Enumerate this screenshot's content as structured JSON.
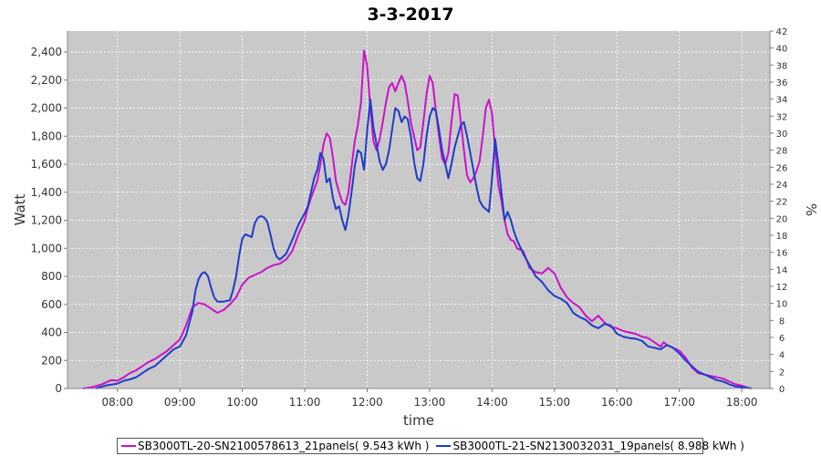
{
  "chart_data": {
    "type": "line",
    "title": "3-3-2017",
    "xlabel": "time",
    "ylabel": "Watt",
    "y2label": "%",
    "xlim": [
      7.2,
      18.45
    ],
    "ylim": [
      0,
      2550
    ],
    "y2lim": [
      0,
      42
    ],
    "grid": true,
    "x_ticks": [
      {
        "v": 8,
        "label": "08:00"
      },
      {
        "v": 9,
        "label": "09:00"
      },
      {
        "v": 10,
        "label": "10:00"
      },
      {
        "v": 11,
        "label": "11:00"
      },
      {
        "v": 12,
        "label": "12:00"
      },
      {
        "v": 13,
        "label": "13:00"
      },
      {
        "v": 14,
        "label": "14:00"
      },
      {
        "v": 15,
        "label": "15:00"
      },
      {
        "v": 16,
        "label": "16:00"
      },
      {
        "v": 17,
        "label": "17:00"
      },
      {
        "v": 18,
        "label": "18:00"
      }
    ],
    "y_ticks": [
      {
        "v": 0,
        "label": "0"
      },
      {
        "v": 200,
        "label": "200"
      },
      {
        "v": 400,
        "label": "400"
      },
      {
        "v": 600,
        "label": "600"
      },
      {
        "v": 800,
        "label": "800"
      },
      {
        "v": 1000,
        "label": "1,000"
      },
      {
        "v": 1200,
        "label": "1,200"
      },
      {
        "v": 1400,
        "label": "1,400"
      },
      {
        "v": 1600,
        "label": "1,600"
      },
      {
        "v": 1800,
        "label": "1,800"
      },
      {
        "v": 2000,
        "label": "2,000"
      },
      {
        "v": 2200,
        "label": "2,200"
      },
      {
        "v": 2400,
        "label": "2,400"
      }
    ],
    "y2_ticks": [
      "0",
      "2",
      "4",
      "6",
      "8",
      "10",
      "12",
      "14",
      "16",
      "18",
      "20",
      "22",
      "24",
      "26",
      "28",
      "30",
      "32",
      "34",
      "36",
      "38",
      "40",
      "42"
    ],
    "legend_position": "bottom",
    "series": [
      {
        "name": "SB3000TL-20-SN2100578613_21panels( 9.543 kWh )",
        "color": "#cc11cc",
        "points": [
          [
            7.45,
            0
          ],
          [
            7.6,
            10
          ],
          [
            7.75,
            30
          ],
          [
            7.9,
            60
          ],
          [
            8.0,
            55
          ],
          [
            8.1,
            80
          ],
          [
            8.2,
            110
          ],
          [
            8.3,
            130
          ],
          [
            8.4,
            160
          ],
          [
            8.5,
            190
          ],
          [
            8.6,
            210
          ],
          [
            8.7,
            240
          ],
          [
            8.8,
            270
          ],
          [
            8.9,
            310
          ],
          [
            9.0,
            350
          ],
          [
            9.1,
            450
          ],
          [
            9.2,
            580
          ],
          [
            9.3,
            610
          ],
          [
            9.4,
            600
          ],
          [
            9.5,
            570
          ],
          [
            9.6,
            540
          ],
          [
            9.7,
            560
          ],
          [
            9.8,
            600
          ],
          [
            9.9,
            650
          ],
          [
            10.0,
            740
          ],
          [
            10.1,
            790
          ],
          [
            10.2,
            810
          ],
          [
            10.3,
            830
          ],
          [
            10.4,
            860
          ],
          [
            10.5,
            880
          ],
          [
            10.6,
            890
          ],
          [
            10.7,
            920
          ],
          [
            10.8,
            980
          ],
          [
            10.9,
            1100
          ],
          [
            11.0,
            1200
          ],
          [
            11.05,
            1290
          ],
          [
            11.1,
            1360
          ],
          [
            11.2,
            1480
          ],
          [
            11.25,
            1600
          ],
          [
            11.3,
            1740
          ],
          [
            11.35,
            1820
          ],
          [
            11.4,
            1790
          ],
          [
            11.45,
            1650
          ],
          [
            11.5,
            1480
          ],
          [
            11.55,
            1400
          ],
          [
            11.6,
            1330
          ],
          [
            11.65,
            1310
          ],
          [
            11.7,
            1400
          ],
          [
            11.75,
            1580
          ],
          [
            11.8,
            1760
          ],
          [
            11.85,
            1880
          ],
          [
            11.9,
            2040
          ],
          [
            11.95,
            2410
          ],
          [
            12.0,
            2300
          ],
          [
            12.05,
            2000
          ],
          [
            12.1,
            1760
          ],
          [
            12.15,
            1700
          ],
          [
            12.2,
            1780
          ],
          [
            12.25,
            1900
          ],
          [
            12.3,
            2040
          ],
          [
            12.35,
            2150
          ],
          [
            12.4,
            2180
          ],
          [
            12.45,
            2120
          ],
          [
            12.5,
            2180
          ],
          [
            12.55,
            2230
          ],
          [
            12.6,
            2180
          ],
          [
            12.65,
            2050
          ],
          [
            12.7,
            1900
          ],
          [
            12.75,
            1800
          ],
          [
            12.8,
            1700
          ],
          [
            12.85,
            1720
          ],
          [
            12.9,
            1900
          ],
          [
            12.95,
            2100
          ],
          [
            13.0,
            2230
          ],
          [
            13.05,
            2180
          ],
          [
            13.1,
            1980
          ],
          [
            13.15,
            1800
          ],
          [
            13.2,
            1640
          ],
          [
            13.25,
            1600
          ],
          [
            13.3,
            1680
          ],
          [
            13.35,
            1900
          ],
          [
            13.4,
            2100
          ],
          [
            13.45,
            2090
          ],
          [
            13.5,
            1900
          ],
          [
            13.55,
            1700
          ],
          [
            13.6,
            1520
          ],
          [
            13.65,
            1470
          ],
          [
            13.7,
            1500
          ],
          [
            13.75,
            1550
          ],
          [
            13.8,
            1620
          ],
          [
            13.85,
            1800
          ],
          [
            13.9,
            2000
          ],
          [
            13.95,
            2060
          ],
          [
            14.0,
            1960
          ],
          [
            14.05,
            1700
          ],
          [
            14.1,
            1450
          ],
          [
            14.15,
            1340
          ],
          [
            14.2,
            1200
          ],
          [
            14.25,
            1100
          ],
          [
            14.3,
            1060
          ],
          [
            14.35,
            1050
          ],
          [
            14.4,
            1000
          ],
          [
            14.5,
            980
          ],
          [
            14.6,
            860
          ],
          [
            14.7,
            830
          ],
          [
            14.8,
            820
          ],
          [
            14.9,
            860
          ],
          [
            15.0,
            820
          ],
          [
            15.1,
            720
          ],
          [
            15.2,
            650
          ],
          [
            15.3,
            610
          ],
          [
            15.4,
            580
          ],
          [
            15.5,
            520
          ],
          [
            15.6,
            480
          ],
          [
            15.7,
            520
          ],
          [
            15.8,
            470
          ],
          [
            15.9,
            440
          ],
          [
            16.0,
            430
          ],
          [
            16.1,
            410
          ],
          [
            16.2,
            400
          ],
          [
            16.3,
            390
          ],
          [
            16.4,
            370
          ],
          [
            16.5,
            360
          ],
          [
            16.6,
            330
          ],
          [
            16.7,
            300
          ],
          [
            16.75,
            330
          ],
          [
            16.8,
            310
          ],
          [
            16.9,
            290
          ],
          [
            17.0,
            270
          ],
          [
            17.1,
            220
          ],
          [
            17.2,
            150
          ],
          [
            17.3,
            110
          ],
          [
            17.4,
            100
          ],
          [
            17.5,
            90
          ],
          [
            17.6,
            80
          ],
          [
            17.7,
            70
          ],
          [
            17.8,
            50
          ],
          [
            17.9,
            30
          ],
          [
            18.0,
            20
          ],
          [
            18.1,
            5
          ],
          [
            18.15,
            0
          ]
        ]
      },
      {
        "name": "SB3000TL-21-SN2130032031_19panels( 8.988 kWh )",
        "color": "#1f3bcc",
        "points": [
          [
            7.65,
            0
          ],
          [
            7.8,
            20
          ],
          [
            8.0,
            35
          ],
          [
            8.1,
            55
          ],
          [
            8.2,
            65
          ],
          [
            8.3,
            80
          ],
          [
            8.4,
            110
          ],
          [
            8.5,
            140
          ],
          [
            8.6,
            160
          ],
          [
            8.7,
            200
          ],
          [
            8.8,
            240
          ],
          [
            8.9,
            280
          ],
          [
            9.0,
            300
          ],
          [
            9.1,
            380
          ],
          [
            9.2,
            550
          ],
          [
            9.25,
            700
          ],
          [
            9.3,
            780
          ],
          [
            9.35,
            820
          ],
          [
            9.4,
            830
          ],
          [
            9.45,
            800
          ],
          [
            9.5,
            720
          ],
          [
            9.55,
            650
          ],
          [
            9.6,
            620
          ],
          [
            9.7,
            620
          ],
          [
            9.8,
            630
          ],
          [
            9.85,
            700
          ],
          [
            9.9,
            800
          ],
          [
            9.95,
            950
          ],
          [
            10.0,
            1070
          ],
          [
            10.05,
            1100
          ],
          [
            10.1,
            1090
          ],
          [
            10.15,
            1080
          ],
          [
            10.2,
            1180
          ],
          [
            10.25,
            1220
          ],
          [
            10.3,
            1230
          ],
          [
            10.35,
            1220
          ],
          [
            10.4,
            1190
          ],
          [
            10.45,
            1100
          ],
          [
            10.5,
            1000
          ],
          [
            10.55,
            940
          ],
          [
            10.6,
            920
          ],
          [
            10.7,
            960
          ],
          [
            10.8,
            1060
          ],
          [
            10.9,
            1170
          ],
          [
            11.0,
            1250
          ],
          [
            11.05,
            1300
          ],
          [
            11.1,
            1400
          ],
          [
            11.15,
            1500
          ],
          [
            11.2,
            1560
          ],
          [
            11.25,
            1680
          ],
          [
            11.3,
            1640
          ],
          [
            11.35,
            1470
          ],
          [
            11.4,
            1500
          ],
          [
            11.45,
            1360
          ],
          [
            11.5,
            1280
          ],
          [
            11.55,
            1300
          ],
          [
            11.6,
            1200
          ],
          [
            11.65,
            1130
          ],
          [
            11.7,
            1240
          ],
          [
            11.75,
            1400
          ],
          [
            11.8,
            1580
          ],
          [
            11.85,
            1700
          ],
          [
            11.9,
            1680
          ],
          [
            11.95,
            1560
          ],
          [
            12.0,
            1840
          ],
          [
            12.05,
            2060
          ],
          [
            12.1,
            1860
          ],
          [
            12.15,
            1740
          ],
          [
            12.2,
            1620
          ],
          [
            12.25,
            1560
          ],
          [
            12.3,
            1600
          ],
          [
            12.35,
            1700
          ],
          [
            12.4,
            1850
          ],
          [
            12.45,
            2000
          ],
          [
            12.5,
            1980
          ],
          [
            12.55,
            1900
          ],
          [
            12.6,
            1940
          ],
          [
            12.65,
            1920
          ],
          [
            12.7,
            1800
          ],
          [
            12.75,
            1620
          ],
          [
            12.8,
            1500
          ],
          [
            12.85,
            1480
          ],
          [
            12.9,
            1600
          ],
          [
            12.95,
            1800
          ],
          [
            13.0,
            1940
          ],
          [
            13.05,
            2000
          ],
          [
            13.1,
            1980
          ],
          [
            13.15,
            1850
          ],
          [
            13.2,
            1700
          ],
          [
            13.25,
            1600
          ],
          [
            13.3,
            1500
          ],
          [
            13.35,
            1600
          ],
          [
            13.4,
            1720
          ],
          [
            13.45,
            1800
          ],
          [
            13.5,
            1880
          ],
          [
            13.55,
            1900
          ],
          [
            13.6,
            1800
          ],
          [
            13.65,
            1680
          ],
          [
            13.7,
            1560
          ],
          [
            13.75,
            1440
          ],
          [
            13.8,
            1340
          ],
          [
            13.85,
            1300
          ],
          [
            13.9,
            1280
          ],
          [
            13.95,
            1260
          ],
          [
            14.0,
            1500
          ],
          [
            14.05,
            1780
          ],
          [
            14.1,
            1600
          ],
          [
            14.15,
            1400
          ],
          [
            14.2,
            1200
          ],
          [
            14.25,
            1260
          ],
          [
            14.3,
            1200
          ],
          [
            14.35,
            1120
          ],
          [
            14.4,
            1060
          ],
          [
            14.5,
            960
          ],
          [
            14.6,
            880
          ],
          [
            14.7,
            800
          ],
          [
            14.8,
            760
          ],
          [
            14.9,
            700
          ],
          [
            15.0,
            660
          ],
          [
            15.1,
            640
          ],
          [
            15.2,
            610
          ],
          [
            15.3,
            540
          ],
          [
            15.4,
            510
          ],
          [
            15.5,
            490
          ],
          [
            15.6,
            450
          ],
          [
            15.7,
            430
          ],
          [
            15.8,
            460
          ],
          [
            15.9,
            450
          ],
          [
            16.0,
            390
          ],
          [
            16.1,
            370
          ],
          [
            16.2,
            360
          ],
          [
            16.3,
            355
          ],
          [
            16.4,
            340
          ],
          [
            16.5,
            300
          ],
          [
            16.6,
            290
          ],
          [
            16.7,
            280
          ],
          [
            16.8,
            310
          ],
          [
            16.9,
            290
          ],
          [
            17.0,
            250
          ],
          [
            17.1,
            200
          ],
          [
            17.2,
            160
          ],
          [
            17.3,
            120
          ],
          [
            17.4,
            100
          ],
          [
            17.5,
            80
          ],
          [
            17.6,
            60
          ],
          [
            17.7,
            50
          ],
          [
            17.8,
            30
          ],
          [
            17.9,
            15
          ],
          [
            18.0,
            10
          ],
          [
            18.1,
            5
          ],
          [
            18.15,
            0
          ]
        ]
      }
    ]
  }
}
